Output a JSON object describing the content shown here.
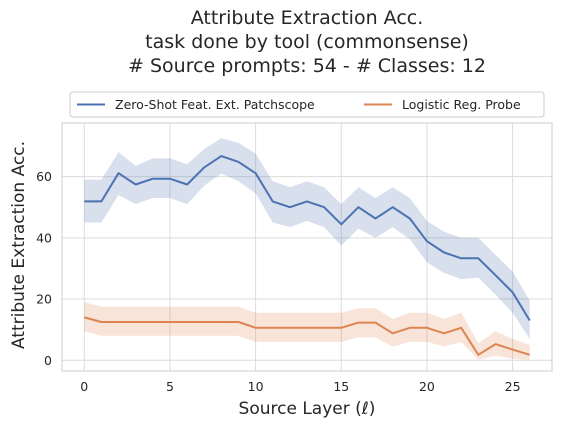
{
  "chart_data": {
    "type": "line",
    "title_lines": [
      "Attribute Extraction Acc.",
      "task done by tool (commonsense)",
      "# Source prompts: 54 - # Classes: 12"
    ],
    "xlabel": "Source Layer (ℓ)",
    "ylabel": "Attribute Extraction Acc.",
    "xlim": [
      -1.3,
      27.3
    ],
    "ylim": [
      -3.5,
      77.5
    ],
    "xticks": [
      0,
      5,
      10,
      15,
      20,
      25
    ],
    "yticks": [
      0,
      20,
      40,
      60
    ],
    "grid": true,
    "legend_position": "top",
    "x": [
      0,
      1,
      2,
      3,
      4,
      5,
      6,
      7,
      8,
      9,
      10,
      11,
      12,
      13,
      14,
      15,
      16,
      17,
      18,
      19,
      20,
      21,
      22,
      23,
      24,
      25,
      26
    ],
    "series": [
      {
        "name": "Zero-Shot Feat. Ext. Patchscope",
        "color": "#4c72b0",
        "values": [
          51.9,
          51.9,
          61.1,
          57.4,
          59.3,
          59.3,
          57.4,
          63.0,
          66.7,
          64.8,
          61.1,
          51.9,
          50.0,
          51.9,
          50.0,
          44.4,
          50.0,
          46.3,
          50.0,
          46.3,
          38.9,
          35.2,
          33.3,
          33.3,
          27.8,
          22.2,
          13.0
        ],
        "lower": [
          45.0,
          45.0,
          54.0,
          51.0,
          53.0,
          53.0,
          51.0,
          57.0,
          61.0,
          58.5,
          54.5,
          45.0,
          43.5,
          45.5,
          43.5,
          37.5,
          43.0,
          40.0,
          43.5,
          39.5,
          32.0,
          28.5,
          26.5,
          27.0,
          21.5,
          15.5,
          7.0
        ],
        "upper": [
          59.0,
          59.0,
          68.0,
          63.5,
          66.0,
          66.0,
          64.0,
          69.0,
          72.5,
          71.0,
          67.5,
          58.5,
          56.5,
          58.5,
          56.5,
          51.0,
          56.5,
          53.0,
          56.5,
          53.0,
          45.5,
          42.0,
          40.0,
          40.0,
          34.5,
          29.0,
          19.5
        ]
      },
      {
        "name": "Logistic Reg. Probe",
        "color": "#dd8452",
        "values": [
          14.0,
          12.5,
          12.5,
          12.5,
          12.5,
          12.5,
          12.5,
          12.5,
          12.5,
          12.5,
          10.6,
          10.6,
          10.6,
          10.6,
          10.6,
          10.6,
          12.3,
          12.3,
          8.8,
          10.6,
          10.6,
          8.8,
          10.6,
          1.8,
          5.3,
          3.5,
          1.8
        ],
        "lower": [
          9.5,
          8.0,
          8.0,
          8.0,
          8.0,
          8.0,
          8.0,
          8.0,
          8.0,
          8.0,
          6.0,
          6.0,
          6.0,
          6.0,
          6.0,
          6.0,
          7.5,
          7.5,
          4.5,
          6.0,
          6.0,
          4.5,
          6.0,
          0.2,
          1.5,
          0.5,
          0.2
        ],
        "upper": [
          19.0,
          17.5,
          17.5,
          17.5,
          17.5,
          17.5,
          17.5,
          17.5,
          17.5,
          17.5,
          15.5,
          15.5,
          15.5,
          15.5,
          15.5,
          15.5,
          17.0,
          17.0,
          13.5,
          15.5,
          15.5,
          13.5,
          15.5,
          5.5,
          9.5,
          7.0,
          5.0
        ]
      }
    ]
  }
}
